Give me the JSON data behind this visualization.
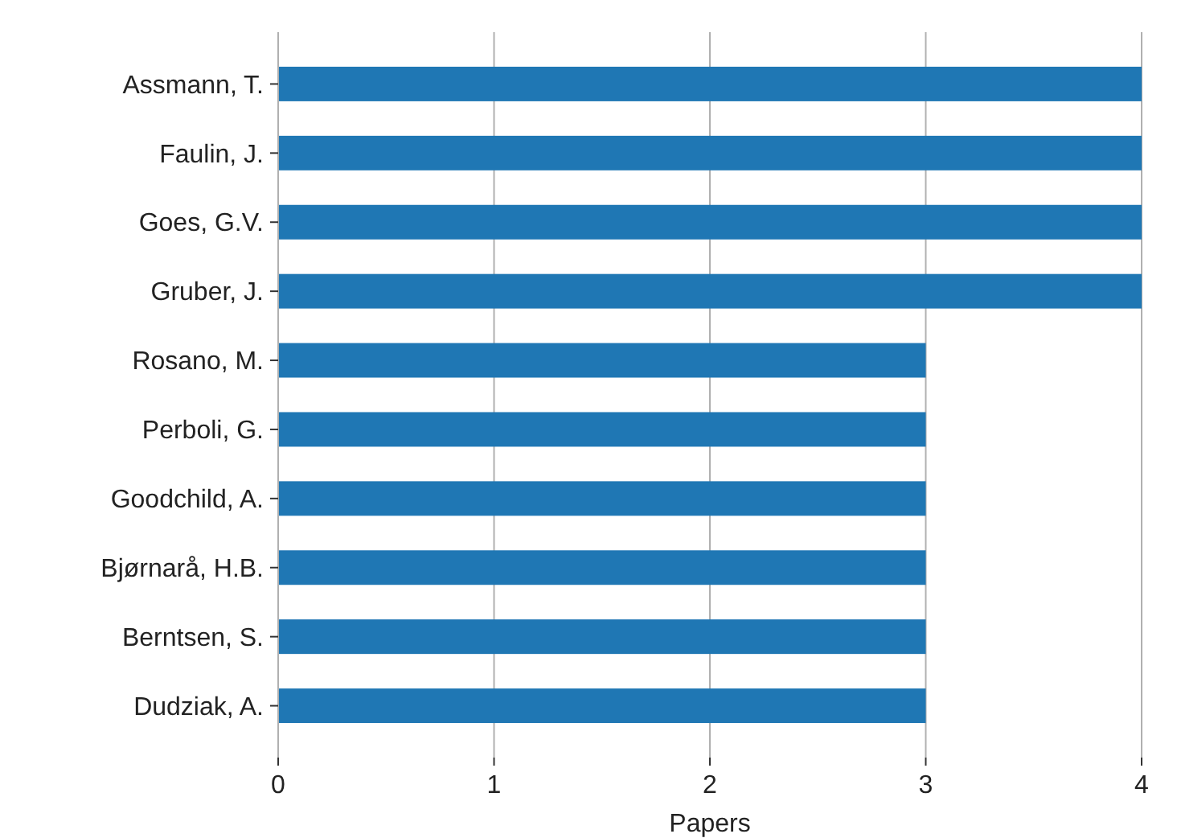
{
  "chart_data": {
    "type": "bar",
    "orientation": "horizontal",
    "categories": [
      "Assmann, T.",
      "Faulin, J.",
      "Goes, G.V.",
      "Gruber, J.",
      "Rosano, M.",
      "Perboli, G.",
      "Goodchild, A.",
      "Bjørnarå, H.B.",
      "Berntsen, S.",
      "Dudziak, A."
    ],
    "values": [
      4,
      4,
      4,
      4,
      3,
      3,
      3,
      3,
      3,
      3
    ],
    "color": "#1f77b4",
    "xlim": [
      0,
      4
    ],
    "xticks": [
      0,
      1,
      2,
      3,
      4
    ],
    "xlabel": "Papers",
    "grid": "x"
  }
}
